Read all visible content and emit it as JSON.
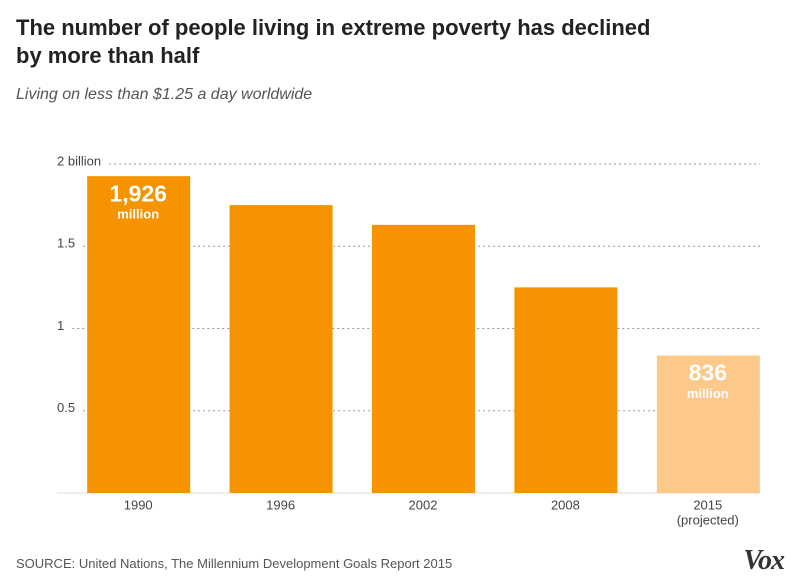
{
  "chart_data": {
    "type": "bar",
    "title": "The number of people living in extreme poverty has declined by more than half",
    "subtitle": "Living on less than $1.25 a day worldwide",
    "source": "SOURCE: United Nations, The Millennium Development Goals Report 2015",
    "brand": "Vox",
    "categories": [
      "1990",
      "1996",
      "2002",
      "2008",
      "2015"
    ],
    "category_notes": [
      null,
      null,
      null,
      null,
      "(projected)"
    ],
    "values": [
      1.926,
      1.75,
      1.63,
      1.25,
      0.836
    ],
    "value_labels": [
      "1,926",
      null,
      null,
      null,
      "836"
    ],
    "value_label_unit": "million",
    "colors": [
      "#f59300",
      "#f59300",
      "#f59300",
      "#f59300",
      "#fcc98a"
    ],
    "ylim": [
      0,
      2
    ],
    "yticks": [
      {
        "value": 0.5,
        "label": "0.5"
      },
      1,
      {
        "value": 1.5,
        "label": "1.5"
      },
      {
        "value": 2,
        "label": "2 billion"
      }
    ],
    "grid": true
  }
}
